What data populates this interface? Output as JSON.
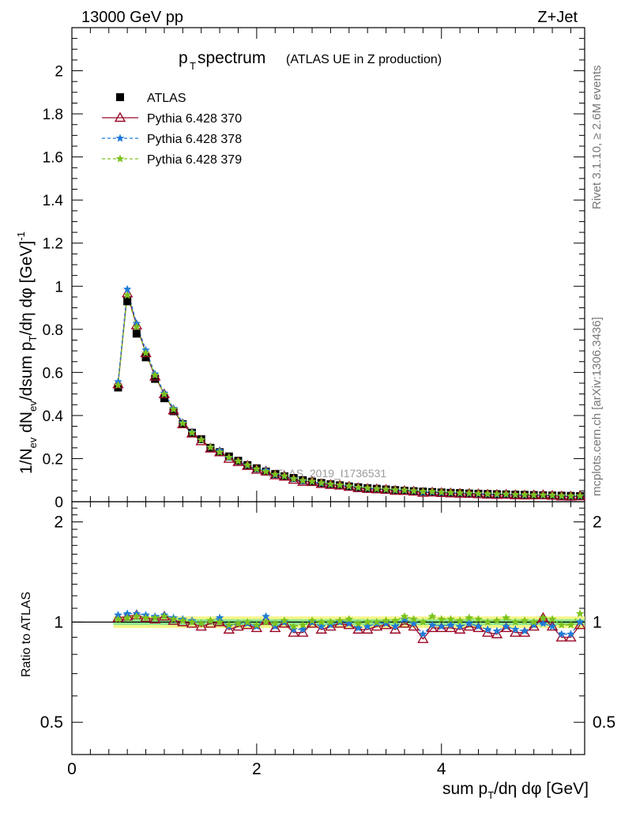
{
  "header": {
    "left": "13000 GeV pp",
    "right": "Z+Jet"
  },
  "side_labels": {
    "rivet": "Rivet 3.1.10, ≥ 2.6M events",
    "mcplots": "mcplots.cern.ch [arXiv:1306.3436]"
  },
  "watermark": "ATLAS_2019_I1736531",
  "title": {
    "main_p": "p",
    "main_sub": "T",
    "main_rest": " spectrum",
    "extra": "(ATLAS UE in Z production)"
  },
  "legend": [
    {
      "label": "ATLAS",
      "color": "#000000",
      "marker": "square"
    },
    {
      "label": "Pythia 6.428 370",
      "color": "#9b0a2a",
      "marker": "triangle"
    },
    {
      "label": "Pythia 6.428 378",
      "color": "#1e7ad8",
      "marker": "star"
    },
    {
      "label": "Pythia 6.428 379",
      "color": "#7cc21f",
      "marker": "star"
    }
  ],
  "axes": {
    "y_top_label": "1/N_ev dN_ev/dsum p_T/dη dφ [GeV]^-1",
    "y_bottom_label": "Ratio to ATLAS",
    "x_label": "sum p_T/dη dφ [GeV]",
    "x_ticks": [
      "0",
      "2",
      "4"
    ],
    "y_top_ticks": [
      "0",
      "0.2",
      "0.4",
      "0.6",
      "0.8",
      "1",
      "1.2",
      "1.4",
      "1.6",
      "1.8",
      "2"
    ],
    "y_bottom_ticks": [
      "0.5",
      "1",
      "2"
    ]
  },
  "chart_data": {
    "type": "scatter",
    "title": "p_T spectrum (ATLAS UE in Z production)",
    "xlabel": "sum p_T/dη dφ [GeV]",
    "ylabel": "1/N_ev dN_ev/dsum p_T/dη dφ [GeV]^-1",
    "xlim": [
      0,
      5.55
    ],
    "ylim": [
      0,
      2.2
    ],
    "ratio_ylabel": "Ratio to ATLAS",
    "ratio_ylim": [
      0.4,
      2.3
    ],
    "ratio_scale": "log",
    "x": [
      0.5,
      0.6,
      0.7,
      0.8,
      0.9,
      1.0,
      1.1,
      1.2,
      1.3,
      1.4,
      1.5,
      1.6,
      1.7,
      1.8,
      1.9,
      2.0,
      2.1,
      2.2,
      2.3,
      2.4,
      2.5,
      2.6,
      2.7,
      2.8,
      2.9,
      3.0,
      3.1,
      3.2,
      3.3,
      3.4,
      3.5,
      3.6,
      3.7,
      3.8,
      3.9,
      4.0,
      4.1,
      4.2,
      4.3,
      4.4,
      4.5,
      4.6,
      4.7,
      4.8,
      4.9,
      5.0,
      5.1,
      5.2,
      5.3,
      5.4,
      5.5
    ],
    "series": [
      {
        "name": "ATLAS",
        "values": [
          0.53,
          0.93,
          0.78,
          0.67,
          0.57,
          0.48,
          0.42,
          0.36,
          0.32,
          0.29,
          0.25,
          0.23,
          0.21,
          0.19,
          0.17,
          0.155,
          0.14,
          0.128,
          0.118,
          0.11,
          0.1,
          0.093,
          0.087,
          0.081,
          0.076,
          0.071,
          0.067,
          0.063,
          0.06,
          0.057,
          0.054,
          0.051,
          0.049,
          0.047,
          0.045,
          0.043,
          0.041,
          0.04,
          0.038,
          0.037,
          0.036,
          0.035,
          0.034,
          0.033,
          0.032,
          0.031,
          0.03,
          0.029,
          0.028,
          0.027,
          0.026
        ]
      },
      {
        "name": "Pythia 6.428 370",
        "ratio": [
          1.03,
          1.04,
          1.05,
          1.03,
          1.02,
          1.04,
          1.01,
          1.0,
          0.99,
          0.97,
          0.99,
          1.0,
          0.95,
          0.97,
          0.98,
          0.96,
          1.01,
          0.96,
          0.99,
          0.93,
          0.93,
          0.99,
          0.95,
          0.97,
          0.99,
          0.98,
          0.95,
          0.95,
          0.97,
          0.98,
          0.95,
          0.99,
          0.97,
          0.89,
          0.96,
          0.96,
          0.96,
          0.95,
          0.97,
          0.96,
          0.93,
          0.92,
          0.96,
          0.93,
          0.93,
          0.97,
          1.03,
          0.97,
          0.9,
          0.9,
          0.98
        ]
      },
      {
        "name": "Pythia 6.428 378",
        "ratio": [
          1.05,
          1.06,
          1.06,
          1.05,
          1.04,
          1.05,
          1.03,
          1.02,
          1.01,
          0.99,
          1.01,
          1.03,
          0.97,
          0.99,
          0.99,
          0.97,
          1.04,
          0.97,
          1.0,
          0.95,
          0.95,
          1.0,
          0.97,
          0.98,
          1.0,
          0.99,
          0.96,
          0.97,
          0.99,
          0.99,
          0.97,
          1.02,
          0.99,
          0.92,
          0.98,
          0.97,
          0.98,
          0.97,
          0.99,
          0.97,
          0.95,
          0.94,
          0.97,
          0.95,
          0.94,
          0.98,
          0.99,
          0.97,
          0.92,
          0.92,
          1.0
        ]
      },
      {
        "name": "Pythia 6.428 379",
        "ratio": [
          1.02,
          1.03,
          1.04,
          1.03,
          1.03,
          1.04,
          1.02,
          1.01,
          1.0,
          0.99,
          1.01,
          1.0,
          0.98,
          0.99,
          1.0,
          0.98,
          1.0,
          0.99,
          1.01,
          0.97,
          0.98,
          1.01,
          1.0,
          1.0,
          1.01,
          1.02,
          0.99,
          1.0,
          1.0,
          1.01,
          1.01,
          1.04,
          1.02,
          1.0,
          1.04,
          1.02,
          1.02,
          1.01,
          1.03,
          1.02,
          1.0,
          1.01,
          1.03,
          1.0,
          1.01,
          1.0,
          1.03,
          1.02,
          0.98,
          0.98,
          1.06
        ]
      }
    ],
    "ratio_band": {
      "green_half_width": 0.02,
      "yellow_half_width": 0.04
    },
    "colors": {
      "ATLAS": "#000000",
      "Pythia 6.428 370": "#9b0a2a",
      "Pythia 6.428 378": "#1e7ad8",
      "Pythia 6.428 379": "#7cc21f",
      "band_green": "#8fe88f",
      "band_yellow": "#f5f58a"
    }
  }
}
